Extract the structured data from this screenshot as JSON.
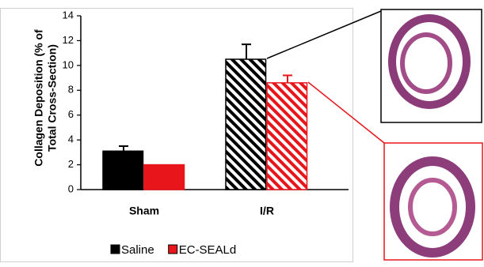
{
  "chart_data": {
    "type": "bar",
    "ylabel": [
      "Collagen Deposition (% of",
      "Total Cross-Section)"
    ],
    "categories": [
      "Sham",
      "I/R"
    ],
    "series": [
      {
        "name": "Saline",
        "color": "#000000",
        "values": [
          3.1,
          10.5
        ],
        "errors": [
          0.4,
          1.2
        ],
        "hatched": [
          false,
          true
        ]
      },
      {
        "name": "EC-SEALd",
        "color": "#e8151b",
        "values": [
          2.0,
          8.6
        ],
        "errors": [
          null,
          0.6
        ],
        "hatched": [
          false,
          true
        ]
      }
    ],
    "ylim": [
      0,
      14
    ],
    "yticks": [
      0,
      2,
      4,
      6,
      8,
      10,
      12,
      14
    ],
    "grid": false,
    "legend": "bottom"
  }
}
